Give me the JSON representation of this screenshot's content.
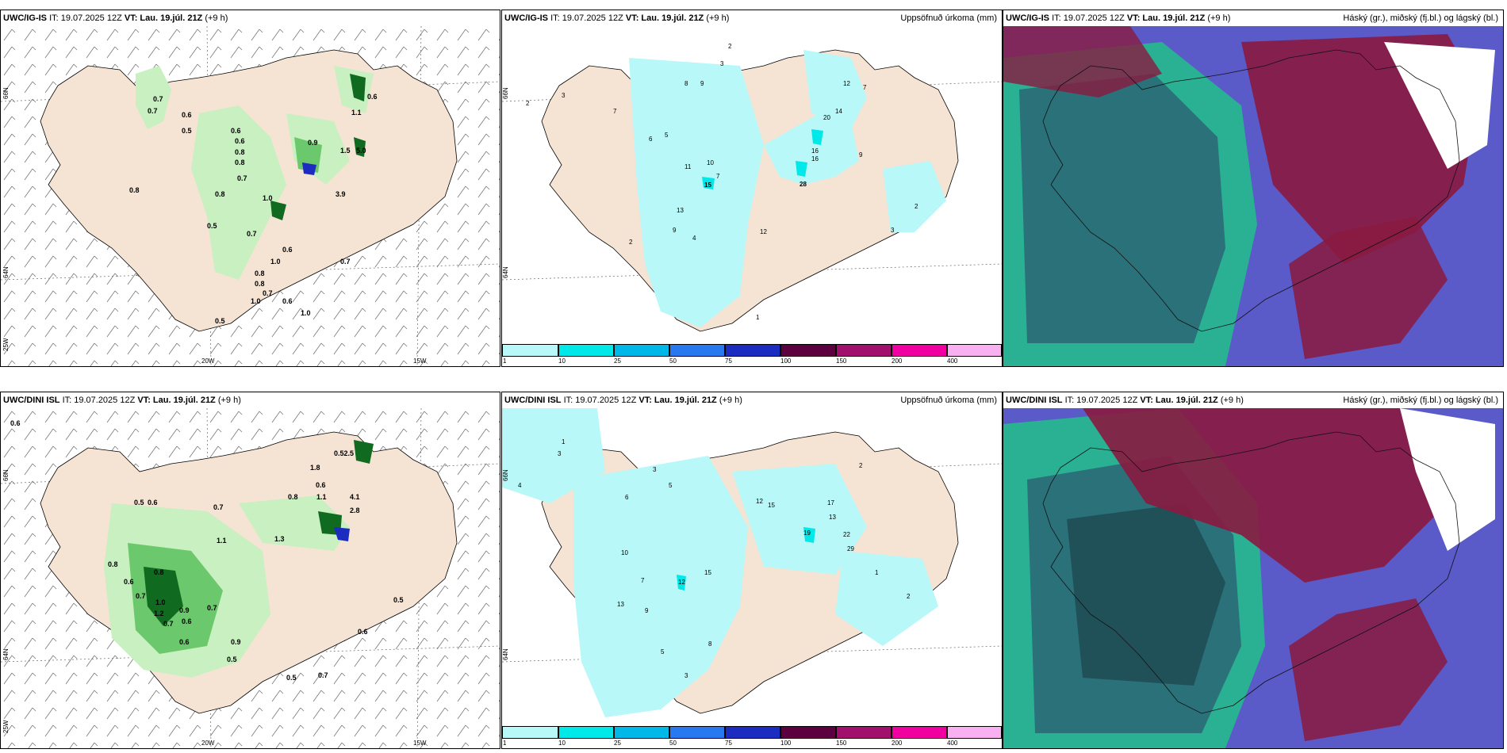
{
  "panels": {
    "top": {
      "wind": {
        "model": "UWC/IG-IS",
        "it": "IT: 19.07.2025 12Z",
        "vt_label": "VT:",
        "vt": "Lau. 19.júl. 21Z",
        "lead": "(+9 h)"
      },
      "precip": {
        "model": "UWC/IG-IS",
        "it": "IT: 19.07.2025 12Z",
        "vt_label": "VT:",
        "vt": "Lau. 19.júl. 21Z",
        "lead": "(+9 h)",
        "title": "Uppsöfnuð úrkoma (mm)"
      },
      "cloud": {
        "model": "UWC/IG-IS",
        "it": "IT: 19.07.2025 12Z",
        "vt_label": "VT:",
        "vt": "Lau. 19.júl. 21Z",
        "lead": "(+9 h)",
        "title": "Háský (gr.), miðský (fj.bl.) og lágský (bl.)"
      }
    },
    "bottom": {
      "wind": {
        "model": "UWC/DINI ISL",
        "it": "IT: 19.07.2025 12Z",
        "vt_label": "VT:",
        "vt": "Lau. 19.júl. 21Z",
        "lead": "(+9 h)"
      },
      "precip": {
        "model": "UWC/DINI ISL",
        "it": "IT: 19.07.2025 12Z",
        "vt_label": "VT:",
        "vt": "Lau. 19.júl. 21Z",
        "lead": "(+9 h)",
        "title": "Uppsöfnuð úrkoma (mm)"
      },
      "cloud": {
        "model": "UWC/DINI ISL",
        "it": "IT: 19.07.2025 12Z",
        "vt_label": "VT:",
        "vt": "Lau. 19.júl. 21Z",
        "lead": "(+9 h)",
        "title": "Háský (gr.), miðský (fj.bl.) og lágský (bl.)"
      }
    }
  },
  "grid_labels": {
    "lat66": "66N",
    "lat64": "64N",
    "lon25": "25W",
    "lon20": "20W",
    "lon15": "15W"
  },
  "colorbar": {
    "ticks": [
      "1",
      "10",
      "25",
      "50",
      "75",
      "100",
      "150",
      "200",
      "400"
    ],
    "colors": [
      "#b8f8f8",
      "#00e8e8",
      "#00b8e8",
      "#2878f0",
      "#1c2cc0",
      "#5c0040",
      "#a0106c",
      "#f000a0",
      "#f8b0f0"
    ]
  },
  "colors": {
    "land": "#f5e4d4",
    "precip_light": "#b8f8f8",
    "precip_mid": "#00e8e8",
    "wind_precip_light": "#c8f0c0",
    "wind_precip_mid": "#6cc86c",
    "wind_precip_dark": "#106a20",
    "cloud_low": "#5a5ac8",
    "cloud_mid": "#8a1a40",
    "cloud_high": "#22c088"
  },
  "labels": {
    "top_wind": [
      "0.7",
      "0.6",
      "0.7",
      "0.6",
      "0.5",
      "0.6",
      "0.8",
      "0.8",
      "0.8",
      "0.7",
      "0.8",
      "1.0",
      "0.5",
      "0.7",
      "0.6",
      "1.0",
      "0.8",
      "0.8",
      "0.7",
      "0.5",
      "1.0",
      "0.6",
      "0.7",
      "1.0",
      "0.9",
      "1.5",
      "5.0",
      "3.9",
      "1.1",
      "0.6"
    ],
    "top_precip": [
      "2",
      "3",
      "2",
      "7",
      "8",
      "9",
      "3",
      "6",
      "5",
      "11",
      "10",
      "7",
      "15",
      "13",
      "9",
      "4",
      "2",
      "12",
      "16",
      "16",
      "28",
      "20",
      "14",
      "12",
      "7",
      "9",
      "2",
      "3",
      "1"
    ],
    "bottom_wind": [
      "0.6",
      "0.5",
      "0.6",
      "0.8",
      "0.6",
      "0.7",
      "0.8",
      "1.0",
      "0.9",
      "0.7",
      "0.7",
      "1.2",
      "0.6",
      "0.9",
      "0.5",
      "0.5",
      "0.7",
      "1.1",
      "0.8",
      "1.3",
      "0.7",
      "0.6",
      "1.8",
      "0.52.5",
      "0.6",
      "1.1",
      "4.1",
      "2.8",
      "0.5",
      "0.6"
    ],
    "bottom_precip": [
      "1",
      "3",
      "4",
      "6",
      "3",
      "5",
      "10",
      "7",
      "12",
      "13",
      "15",
      "9",
      "12",
      "15",
      "19",
      "22",
      "29",
      "17",
      "13",
      "2",
      "5",
      "3",
      "8",
      "2",
      "1"
    ]
  }
}
